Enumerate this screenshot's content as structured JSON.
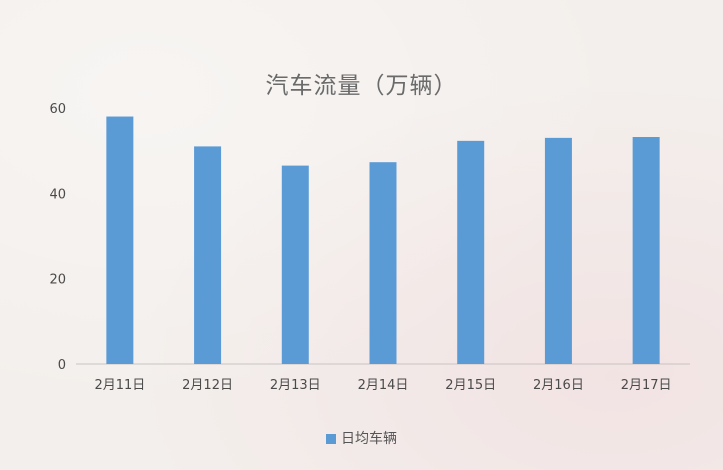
{
  "chart_data": {
    "type": "bar",
    "title": "汽车流量（万辆）",
    "categories": [
      "2月11日",
      "2月12日",
      "2月13日",
      "2月14日",
      "2月15日",
      "2月16日",
      "2月17日"
    ],
    "series": [
      {
        "name": "日均车辆",
        "values": [
          58,
          51,
          46.5,
          47.3,
          52.3,
          53,
          53.2
        ],
        "color": "#5b9bd5"
      }
    ],
    "yticks": [
      "0",
      "20",
      "40",
      "60"
    ],
    "ylim": [
      0,
      60
    ],
    "xlabel": "",
    "ylabel": "",
    "grid": false,
    "legend_position": "bottom"
  }
}
